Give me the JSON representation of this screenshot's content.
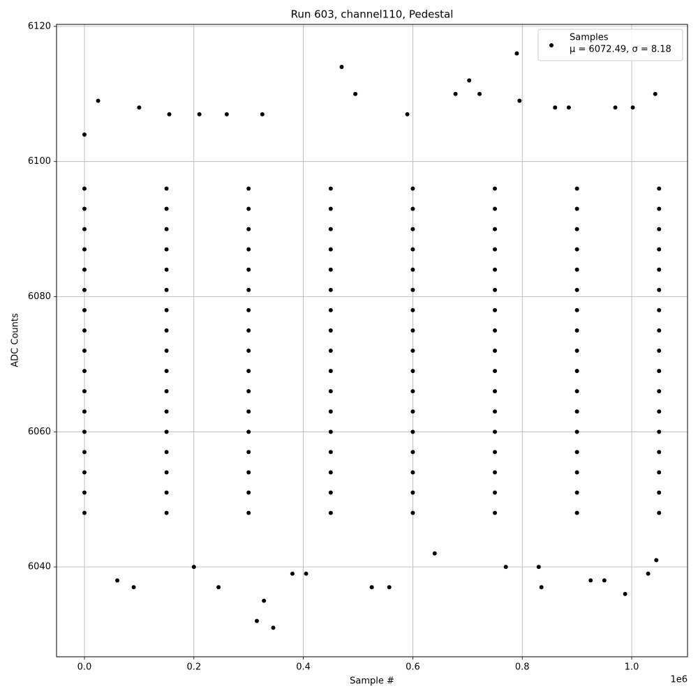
{
  "chart_data": {
    "type": "scatter",
    "title": "Run 603, channel110, Pedestal",
    "xlabel": "Sample #",
    "ylabel": "ADC Counts",
    "x_offset_text": "1e6",
    "xlim": [
      -51000,
      1102000
    ],
    "ylim": [
      6026.7,
      6120.3
    ],
    "xticks": [
      {
        "value": 0,
        "label": "0.0"
      },
      {
        "value": 200000,
        "label": "0.2"
      },
      {
        "value": 400000,
        "label": "0.4"
      },
      {
        "value": 600000,
        "label": "0.6"
      },
      {
        "value": 800000,
        "label": "0.8"
      },
      {
        "value": 1000000,
        "label": "1.0"
      }
    ],
    "yticks": [
      6040,
      6060,
      6080,
      6100,
      6120
    ],
    "grid": true,
    "legend": "upper right",
    "legend_stats": "μ = 6072.49, σ = 8.18",
    "series": [
      {
        "name": "Samples",
        "color": "#000000",
        "x": [
          0,
          150000,
          300000,
          450000,
          600000,
          750000,
          900000,
          1050000,
          0,
          150000,
          300000,
          450000,
          600000,
          750000,
          900000,
          1050000,
          0,
          150000,
          300000,
          450000,
          600000,
          750000,
          900000,
          1050000,
          0,
          150000,
          300000,
          450000,
          600000,
          750000,
          900000,
          1050000,
          0,
          150000,
          300000,
          450000,
          600000,
          750000,
          900000,
          1050000,
          0,
          150000,
          300000,
          450000,
          600000,
          750000,
          900000,
          1050000,
          0,
          150000,
          300000,
          450000,
          600000,
          750000,
          900000,
          1050000,
          0,
          150000,
          300000,
          450000,
          600000,
          750000,
          900000,
          1050000,
          0,
          150000,
          300000,
          450000,
          600000,
          750000,
          900000,
          1050000,
          0,
          150000,
          300000,
          450000,
          600000,
          750000,
          900000,
          1050000,
          0,
          150000,
          300000,
          450000,
          600000,
          750000,
          900000,
          1050000,
          0,
          150000,
          300000,
          450000,
          600000,
          750000,
          900000,
          1050000,
          0,
          150000,
          300000,
          450000,
          600000,
          750000,
          900000,
          1050000,
          0,
          150000,
          300000,
          450000,
          600000,
          750000,
          900000,
          1050000,
          0,
          150000,
          300000,
          450000,
          600000,
          750000,
          900000,
          1050000,
          0,
          150000,
          300000,
          450000,
          600000,
          750000,
          900000,
          1050000,
          0,
          150000,
          300000,
          450000,
          600000,
          750000,
          900000,
          1050000,
          0,
          25000,
          90000,
          100000,
          155000,
          210000,
          245000,
          260000,
          315000,
          328000,
          345000,
          325000,
          380000,
          470000,
          495000,
          525000,
          557000,
          590000,
          678000,
          703000,
          722000,
          790000,
          795000,
          835000,
          860000,
          885000,
          925000,
          970000,
          988000,
          1002000,
          1030000,
          1043000,
          1045000,
          60000,
          200000,
          405000,
          640000,
          770000,
          830000,
          950000
        ],
        "y": [
          6048,
          6048,
          6048,
          6048,
          6048,
          6048,
          6048,
          6048,
          6051,
          6051,
          6051,
          6051,
          6051,
          6051,
          6051,
          6051,
          6054,
          6054,
          6054,
          6054,
          6054,
          6054,
          6054,
          6054,
          6057,
          6057,
          6057,
          6057,
          6057,
          6057,
          6057,
          6057,
          6060,
          6060,
          6060,
          6060,
          6060,
          6060,
          6060,
          6060,
          6063,
          6063,
          6063,
          6063,
          6063,
          6063,
          6063,
          6063,
          6066,
          6066,
          6066,
          6066,
          6066,
          6066,
          6066,
          6066,
          6069,
          6069,
          6069,
          6069,
          6069,
          6069,
          6069,
          6069,
          6072,
          6072,
          6072,
          6072,
          6072,
          6072,
          6072,
          6072,
          6075,
          6075,
          6075,
          6075,
          6075,
          6075,
          6075,
          6075,
          6078,
          6078,
          6078,
          6078,
          6078,
          6078,
          6078,
          6078,
          6081,
          6081,
          6081,
          6081,
          6081,
          6081,
          6081,
          6081,
          6084,
          6084,
          6084,
          6084,
          6084,
          6084,
          6084,
          6084,
          6087,
          6087,
          6087,
          6087,
          6087,
          6087,
          6087,
          6087,
          6090,
          6090,
          6090,
          6090,
          6090,
          6090,
          6090,
          6090,
          6093,
          6093,
          6093,
          6093,
          6093,
          6093,
          6093,
          6093,
          6096,
          6096,
          6096,
          6096,
          6096,
          6096,
          6096,
          6096,
          6104,
          6109,
          6037,
          6108,
          6107,
          6107,
          6037,
          6107,
          6032,
          6035,
          6031,
          6107,
          6039,
          6114,
          6110,
          6037,
          6037,
          6107,
          6110,
          6112,
          6110,
          6116,
          6109,
          6037,
          6108,
          6108,
          6038,
          6108,
          6036,
          6108,
          6039,
          6110,
          6041,
          6038,
          6040,
          6039,
          6042,
          6040,
          6040,
          6038
        ]
      }
    ]
  }
}
